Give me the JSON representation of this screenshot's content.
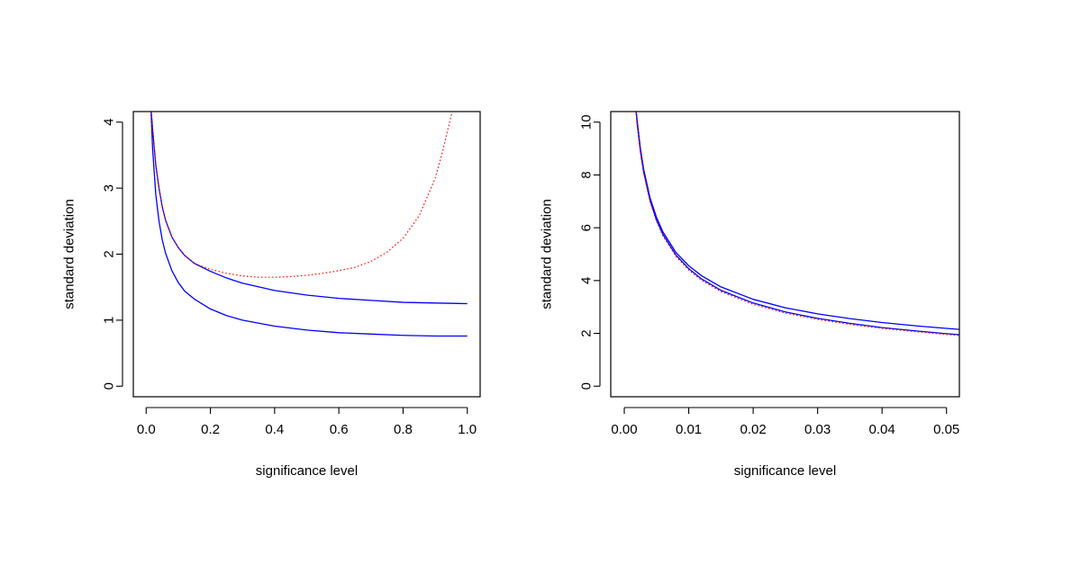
{
  "colors": {
    "series_solid": "#0000ff",
    "series_dotted": "#ff0000",
    "axis": "#000000",
    "background": "#ffffff"
  },
  "chart_data": [
    {
      "type": "line",
      "xlabel": "significance level",
      "ylabel": "standard deviation",
      "xlim": [
        -0.04,
        1.04
      ],
      "ylim": [
        -0.16,
        4.16
      ],
      "xticks": [
        0,
        0.2,
        0.4,
        0.6,
        0.8,
        1
      ],
      "xtick_labels": [
        "0.0",
        "0.2",
        "0.4",
        "0.6",
        "0.8",
        "1.0"
      ],
      "yticks": [
        0,
        1,
        2,
        3,
        4
      ],
      "ytick_labels": [
        "0",
        "1",
        "2",
        "3",
        "4"
      ],
      "grid": false,
      "series": [
        {
          "style": "solid",
          "color": "#0000ff",
          "x": [
            0.015,
            0.02,
            0.03,
            0.04,
            0.05,
            0.06,
            0.08,
            0.1,
            0.12,
            0.15,
            0.2,
            0.25,
            0.3,
            0.4,
            0.5,
            0.6,
            0.7,
            0.8,
            0.9,
            1.0
          ],
          "y": [
            4.2,
            3.9,
            3.35,
            3.0,
            2.72,
            2.52,
            2.26,
            2.1,
            1.98,
            1.86,
            1.74,
            1.64,
            1.56,
            1.45,
            1.38,
            1.33,
            1.3,
            1.27,
            1.26,
            1.25
          ]
        },
        {
          "style": "solid",
          "color": "#0000ff",
          "x": [
            0.015,
            0.02,
            0.03,
            0.04,
            0.05,
            0.06,
            0.08,
            0.1,
            0.12,
            0.15,
            0.2,
            0.25,
            0.3,
            0.4,
            0.5,
            0.6,
            0.7,
            0.8,
            0.9,
            1.0
          ],
          "y": [
            4.2,
            3.6,
            2.9,
            2.5,
            2.22,
            2.02,
            1.75,
            1.57,
            1.44,
            1.32,
            1.17,
            1.07,
            1.0,
            0.91,
            0.85,
            0.81,
            0.79,
            0.77,
            0.76,
            0.76
          ]
        },
        {
          "style": "dotted",
          "color": "#ff0000",
          "x": [
            0.015,
            0.02,
            0.03,
            0.04,
            0.05,
            0.06,
            0.08,
            0.1,
            0.12,
            0.15,
            0.2,
            0.25,
            0.3,
            0.35,
            0.4,
            0.45,
            0.5,
            0.55,
            0.6,
            0.65,
            0.7,
            0.75,
            0.8,
            0.85,
            0.9,
            0.92,
            0.94,
            0.96
          ],
          "y": [
            4.2,
            3.9,
            3.35,
            3.0,
            2.72,
            2.52,
            2.26,
            2.1,
            1.98,
            1.86,
            1.77,
            1.71,
            1.67,
            1.65,
            1.65,
            1.66,
            1.68,
            1.71,
            1.75,
            1.8,
            1.89,
            2.03,
            2.24,
            2.58,
            3.15,
            3.5,
            3.9,
            4.3
          ]
        }
      ]
    },
    {
      "type": "line",
      "xlabel": "significance level",
      "ylabel": "standard deviation",
      "xlim": [
        -0.0021,
        0.052
      ],
      "ylim": [
        -0.4,
        10.4
      ],
      "xticks": [
        0,
        0.01,
        0.02,
        0.03,
        0.04,
        0.05
      ],
      "xtick_labels": [
        "0.00",
        "0.01",
        "0.02",
        "0.03",
        "0.04",
        "0.05"
      ],
      "yticks": [
        0,
        2,
        4,
        6,
        8,
        10
      ],
      "ytick_labels": [
        "0",
        "2",
        "4",
        "6",
        "8",
        "10"
      ],
      "grid": false,
      "series": [
        {
          "style": "solid",
          "color": "#0000ff",
          "x": [
            0.0018,
            0.002,
            0.0025,
            0.003,
            0.004,
            0.005,
            0.006,
            0.008,
            0.01,
            0.012,
            0.015,
            0.02,
            0.025,
            0.03,
            0.035,
            0.04,
            0.045,
            0.05,
            0.052
          ],
          "y": [
            10.5,
            9.95,
            8.9,
            8.12,
            7.03,
            6.29,
            5.74,
            4.97,
            4.45,
            4.06,
            3.63,
            3.15,
            2.81,
            2.57,
            2.38,
            2.22,
            2.1,
            1.99,
            1.95
          ]
        },
        {
          "style": "solid",
          "color": "#0000ff",
          "x": [
            0.0018,
            0.002,
            0.0025,
            0.003,
            0.004,
            0.005,
            0.006,
            0.008,
            0.01,
            0.012,
            0.015,
            0.02,
            0.025,
            0.03,
            0.035,
            0.04,
            0.045,
            0.05,
            0.052
          ],
          "y": [
            10.5,
            10.05,
            9.0,
            8.22,
            7.13,
            6.39,
            5.84,
            5.07,
            4.56,
            4.18,
            3.76,
            3.29,
            2.97,
            2.74,
            2.56,
            2.41,
            2.29,
            2.19,
            2.15
          ]
        },
        {
          "style": "dotted",
          "color": "#ff0000",
          "x": [
            0.0018,
            0.002,
            0.0025,
            0.003,
            0.004,
            0.005,
            0.006,
            0.008,
            0.01,
            0.012,
            0.015,
            0.02,
            0.025,
            0.03,
            0.035,
            0.04,
            0.045,
            0.05,
            0.052
          ],
          "y": [
            10.5,
            9.9,
            8.85,
            8.07,
            6.98,
            6.24,
            5.69,
            4.92,
            4.4,
            4.01,
            3.58,
            3.1,
            2.77,
            2.53,
            2.34,
            2.19,
            2.07,
            1.96,
            1.92
          ]
        }
      ]
    }
  ]
}
